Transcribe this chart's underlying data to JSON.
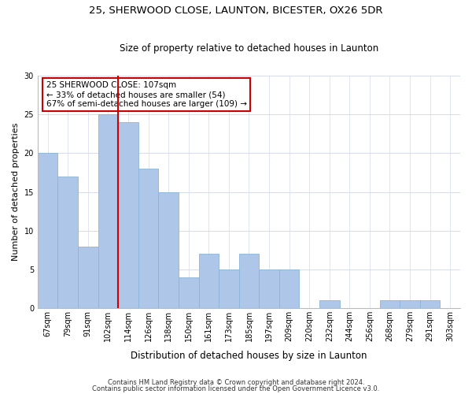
{
  "title_line1": "25, SHERWOOD CLOSE, LAUNTON, BICESTER, OX26 5DR",
  "title_line2": "Size of property relative to detached houses in Launton",
  "xlabel": "Distribution of detached houses by size in Launton",
  "ylabel": "Number of detached properties",
  "footer_line1": "Contains HM Land Registry data © Crown copyright and database right 2024.",
  "footer_line2": "Contains public sector information licensed under the Open Government Licence v3.0.",
  "annotation_line1": "25 SHERWOOD CLOSE: 107sqm",
  "annotation_line2": "← 33% of detached houses are smaller (54)",
  "annotation_line3": "67% of semi-detached houses are larger (109) →",
  "categories": [
    "67sqm",
    "79sqm",
    "91sqm",
    "102sqm",
    "114sqm",
    "126sqm",
    "138sqm",
    "150sqm",
    "161sqm",
    "173sqm",
    "185sqm",
    "197sqm",
    "209sqm",
    "220sqm",
    "232sqm",
    "244sqm",
    "256sqm",
    "268sqm",
    "279sqm",
    "291sqm",
    "303sqm"
  ],
  "values": [
    20,
    17,
    8,
    25,
    24,
    18,
    15,
    4,
    7,
    5,
    7,
    5,
    5,
    0,
    1,
    0,
    0,
    1,
    1,
    1,
    0
  ],
  "bar_color": "#aec6e8",
  "bar_edgecolor": "#8ab4d8",
  "vline_x": 3.5,
  "vline_color": "#cc0000",
  "annotation_box_edgecolor": "#cc0000",
  "grid_color": "#d5dce8",
  "background_color": "#ffffff",
  "ylim": [
    0,
    30
  ],
  "yticks": [
    0,
    5,
    10,
    15,
    20,
    25,
    30
  ],
  "title1_fontsize": 9.5,
  "title2_fontsize": 8.5,
  "ylabel_fontsize": 8,
  "xlabel_fontsize": 8.5,
  "tick_fontsize": 7,
  "annotation_fontsize": 7.5,
  "footer_fontsize": 6
}
